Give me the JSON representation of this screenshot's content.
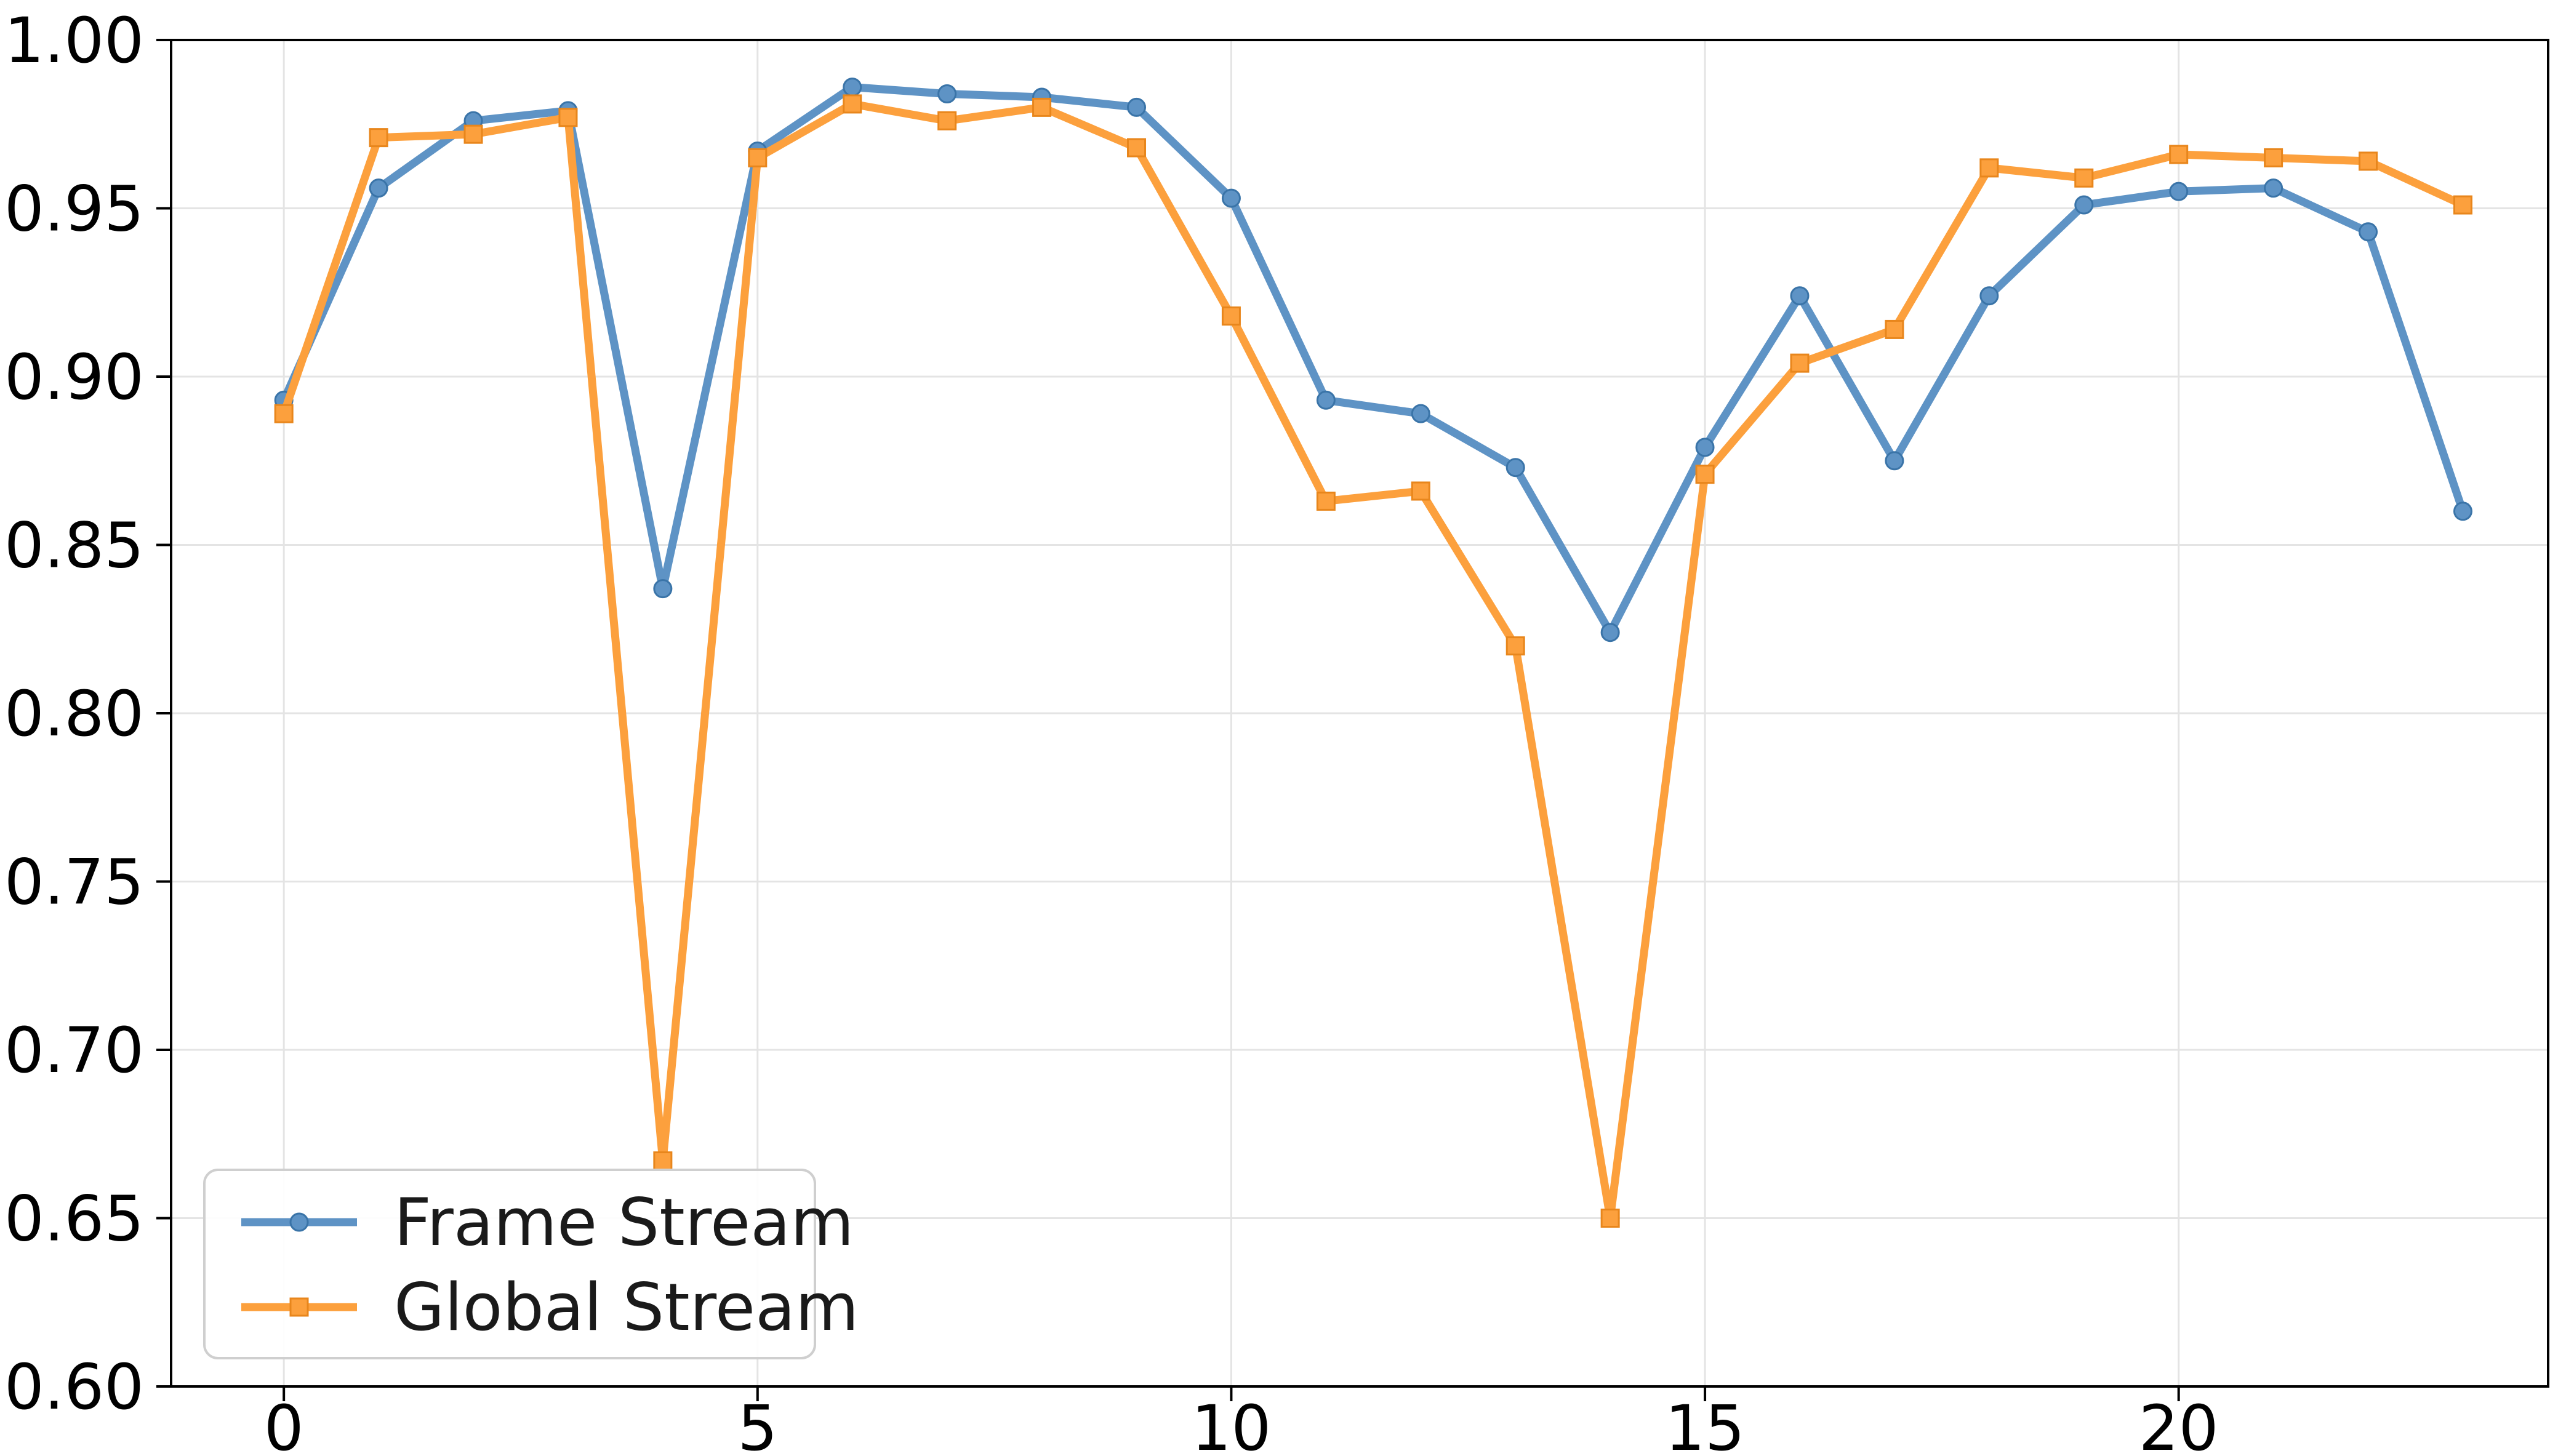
{
  "chart_data": {
    "type": "line",
    "title": "",
    "xlabel": "",
    "ylabel": "",
    "x": [
      0,
      1,
      2,
      3,
      4,
      5,
      6,
      7,
      8,
      9,
      10,
      11,
      12,
      13,
      14,
      15,
      16,
      17,
      18,
      19,
      20,
      21,
      22,
      23
    ],
    "series": [
      {
        "name": "Frame Stream",
        "marker": "circle",
        "color": "#5e93c5",
        "marker_edge_color": "#3a74a8",
        "values": [
          0.893,
          0.956,
          0.976,
          0.979,
          0.837,
          0.967,
          0.986,
          0.984,
          0.983,
          0.98,
          0.953,
          0.893,
          0.889,
          0.873,
          0.824,
          0.879,
          0.924,
          0.875,
          0.924,
          0.951,
          0.955,
          0.956,
          0.943,
          0.86
        ]
      },
      {
        "name": "Global Stream",
        "marker": "square",
        "color": "#fca03d",
        "marker_edge_color": "#e8861c",
        "values": [
          0.889,
          0.971,
          0.972,
          0.977,
          0.667,
          0.965,
          0.981,
          0.976,
          0.98,
          0.968,
          0.918,
          0.863,
          0.866,
          0.82,
          0.65,
          0.871,
          0.904,
          0.914,
          0.962,
          0.959,
          0.966,
          0.965,
          0.964,
          0.951
        ]
      }
    ],
    "xlim": [
      -1.19,
      23.9
    ],
    "ylim": [
      0.6,
      1.0
    ],
    "xticks": {
      "values": [
        0,
        5,
        10,
        15,
        20
      ],
      "labels": [
        "0",
        "5",
        "10",
        "15",
        "20"
      ]
    },
    "yticks": {
      "values": [
        0.6,
        0.65,
        0.7,
        0.75,
        0.8,
        0.85,
        0.9,
        0.95,
        1.0
      ],
      "labels": [
        "0.60",
        "0.65",
        "0.70",
        "0.75",
        "0.80",
        "0.85",
        "0.90",
        "0.95",
        "1.00"
      ]
    },
    "grid": true,
    "legend_position": "lower left"
  },
  "legend": {
    "items": [
      {
        "label": "Frame Stream"
      },
      {
        "label": "Global Stream"
      }
    ]
  },
  "colors": {
    "background": "#ffffff",
    "grid": "#e4e4e4",
    "spine": "#000000",
    "tick_text": "#000000",
    "legend_border": "#cfcfcf",
    "legend_fill": "#ffffff",
    "series_blue": "#5e93c5",
    "series_orange": "#fca03d"
  }
}
